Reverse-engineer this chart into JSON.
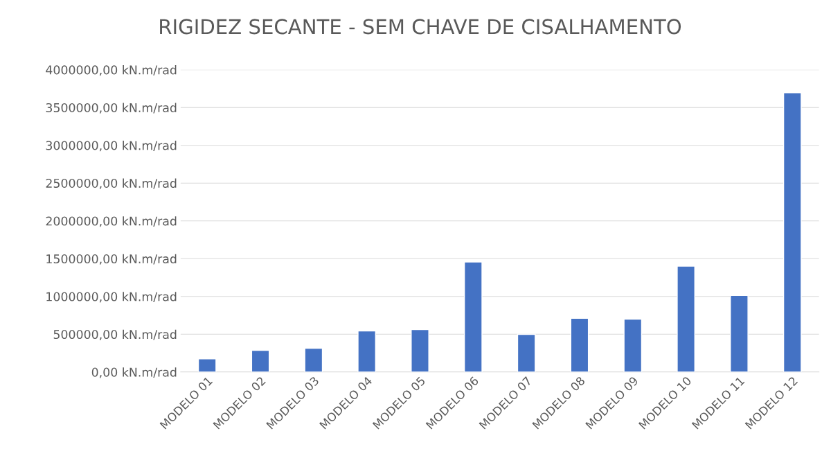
{
  "chart_data": {
    "type": "bar",
    "title": "RIGIDEZ SECANTE - SEM CHAVE DE CISALHAMENTO",
    "categories": [
      "MODELO 01",
      "MODELO 02",
      "MODELO 03",
      "MODELO 04",
      "MODELO 05",
      "MODELO 06",
      "MODELO 07",
      "MODELO 08",
      "MODELO 09",
      "MODELO 10",
      "MODELO 11",
      "MODELO 12"
    ],
    "values": [
      175000,
      286000,
      313000,
      544000,
      562000,
      1456000,
      498000,
      710000,
      700000,
      1401000,
      1014000,
      3696000
    ],
    "color": "#4472c4",
    "ylim": [
      0,
      4000000
    ],
    "yticks": [
      {
        "value": 0,
        "label": "0,00 kN.m/rad"
      },
      {
        "value": 500000,
        "label": "500000,00 kN.m/rad"
      },
      {
        "value": 1000000,
        "label": "1000000,00 kN.m/rad"
      },
      {
        "value": 1500000,
        "label": "1500000,00 kN.m/rad"
      },
      {
        "value": 2000000,
        "label": "2000000,00 kN.m/rad"
      },
      {
        "value": 2500000,
        "label": "2500000,00 kN.m/rad"
      },
      {
        "value": 3000000,
        "label": "3000000,00 kN.m/rad"
      },
      {
        "value": 3500000,
        "label": "3500000,00 kN.m/rad"
      },
      {
        "value": 4000000,
        "label": "4000000,00 kN.m/rad"
      }
    ],
    "grid": "y"
  }
}
